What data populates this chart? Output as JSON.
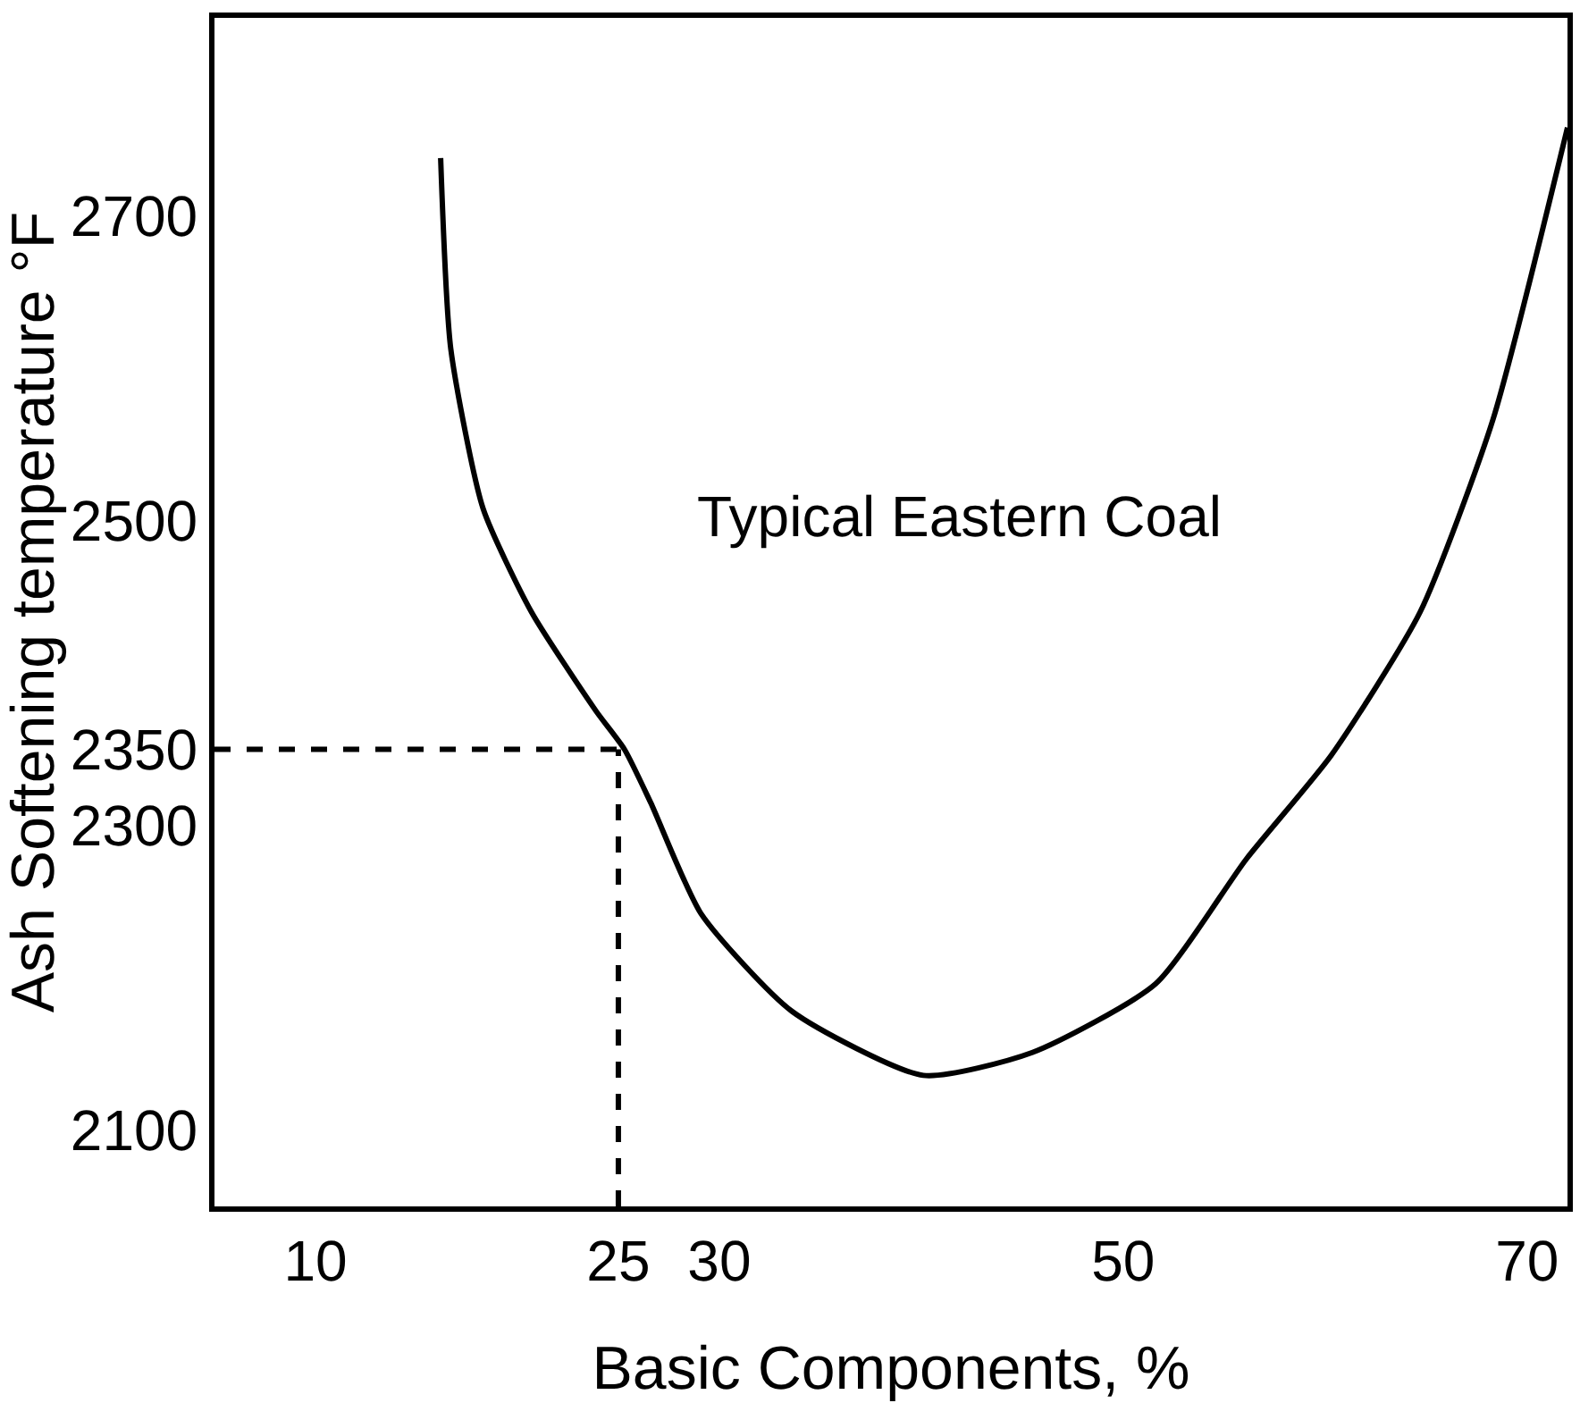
{
  "chart_data": {
    "type": "line",
    "xlabel": "Basic Components, %",
    "ylabel": "Ash Softening temperature °F",
    "series": [
      {
        "name": "Typical Eastern Coal",
        "color": "#000000",
        "x": [
          16.2,
          16.7,
          18.3,
          20.7,
          23.9,
          25.3,
          26.6,
          29.1,
          33.6,
          40.1,
          45.5,
          51.6,
          56.1,
          60.3,
          64.7,
          68.3,
          72
        ],
        "values": [
          2738,
          2613,
          2508,
          2440,
          2375,
          2350,
          2315,
          2242,
          2178,
          2136,
          2151,
          2196,
          2278,
          2346,
          2440,
          2566,
          2758
        ]
      }
    ],
    "xlim": [
      5,
      72
    ],
    "xticks": [
      10,
      25,
      30,
      50,
      70
    ],
    "ylim": [
      2050,
      2830
    ],
    "yticks": [
      2100,
      2300,
      2350,
      2500,
      2700
    ],
    "ref_lines": [
      {
        "axis": "x",
        "value": 25,
        "line_style": "dashed",
        "color": "#000000"
      },
      {
        "axis": "y",
        "value": 2350,
        "line_style": "dashed",
        "color": "#000000"
      }
    ],
    "grid": false,
    "legend": false,
    "marker": "none",
    "line_style": "solid"
  }
}
